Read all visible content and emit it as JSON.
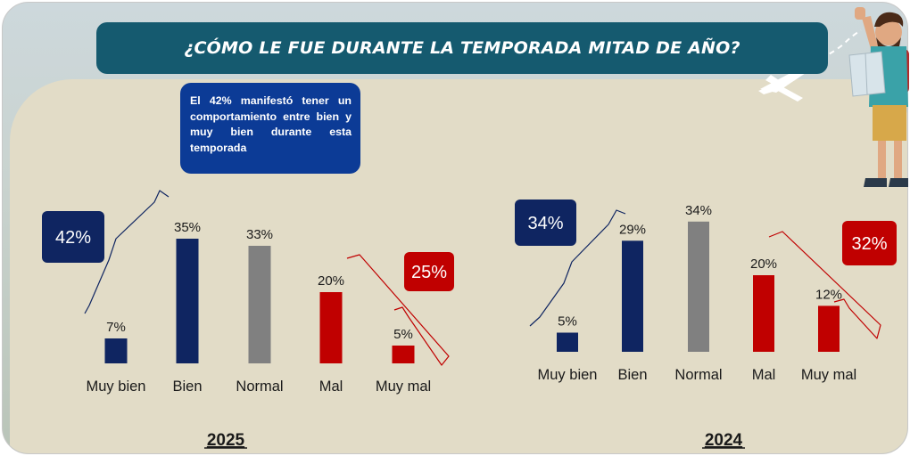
{
  "title": "¿CÓMO LE FUE DURANTE LA TEMPORADA MITAD DE AÑO?",
  "callout": "El 42% manifestó tener un comportamiento entre bien y muy bien durante esta temporada",
  "colors": {
    "positive": "#0f2561",
    "neutral": "#808080",
    "negative": "#c00000",
    "title_bg": "#155a6f",
    "callout_bg": "#0c3b96",
    "panel_bg": "#e2dcc7"
  },
  "chart_data": [
    {
      "type": "bar",
      "title": "2025",
      "categories": [
        "Muy bien",
        "Bien",
        "Normal",
        "Mal",
        "Muy mal"
      ],
      "values": [
        7,
        35,
        33,
        20,
        5
      ],
      "value_labels": [
        "7%",
        "35%",
        "33%",
        "20%",
        "5%"
      ],
      "bar_colors": [
        "#0f2561",
        "#0f2561",
        "#808080",
        "#c00000",
        "#c00000"
      ],
      "group_badges": [
        {
          "label": "42%",
          "categories": [
            "Muy bien",
            "Bien"
          ],
          "color": "#0f2561"
        },
        {
          "label": "25%",
          "categories": [
            "Mal",
            "Muy mal"
          ],
          "color": "#c00000"
        }
      ]
    },
    {
      "type": "bar",
      "title": "2024",
      "categories": [
        "Muy bien",
        "Bien",
        "Normal",
        "Mal",
        "Muy mal"
      ],
      "values": [
        5,
        29,
        34,
        20,
        12
      ],
      "value_labels": [
        "5%",
        "29%",
        "34%",
        "20%",
        "12%"
      ],
      "bar_colors": [
        "#0f2561",
        "#0f2561",
        "#808080",
        "#c00000",
        "#c00000"
      ],
      "group_badges": [
        {
          "label": "34%",
          "categories": [
            "Muy bien",
            "Bien"
          ],
          "color": "#0f2561"
        },
        {
          "label": "32%",
          "categories": [
            "Mal",
            "Muy mal"
          ],
          "color": "#c00000"
        }
      ]
    }
  ]
}
